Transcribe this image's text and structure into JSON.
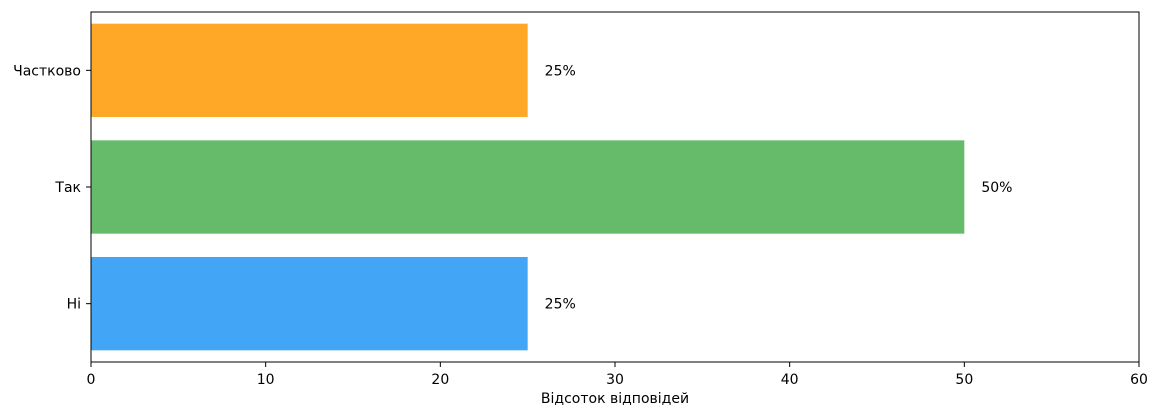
{
  "chart_data": {
    "type": "bar",
    "orientation": "horizontal",
    "categories": [
      "Ні",
      "Так",
      "Частково"
    ],
    "values": [
      25,
      50,
      25
    ],
    "value_labels": [
      "25%",
      "50%",
      "25%"
    ],
    "colors": [
      "#42a5f5",
      "#66bb6a",
      "#ffa726"
    ],
    "xlabel": "Відсоток відповідей",
    "xlim": [
      0,
      60
    ],
    "xticks": [
      0,
      10,
      20,
      30,
      40,
      50,
      60
    ],
    "grid": false,
    "legend": false
  }
}
